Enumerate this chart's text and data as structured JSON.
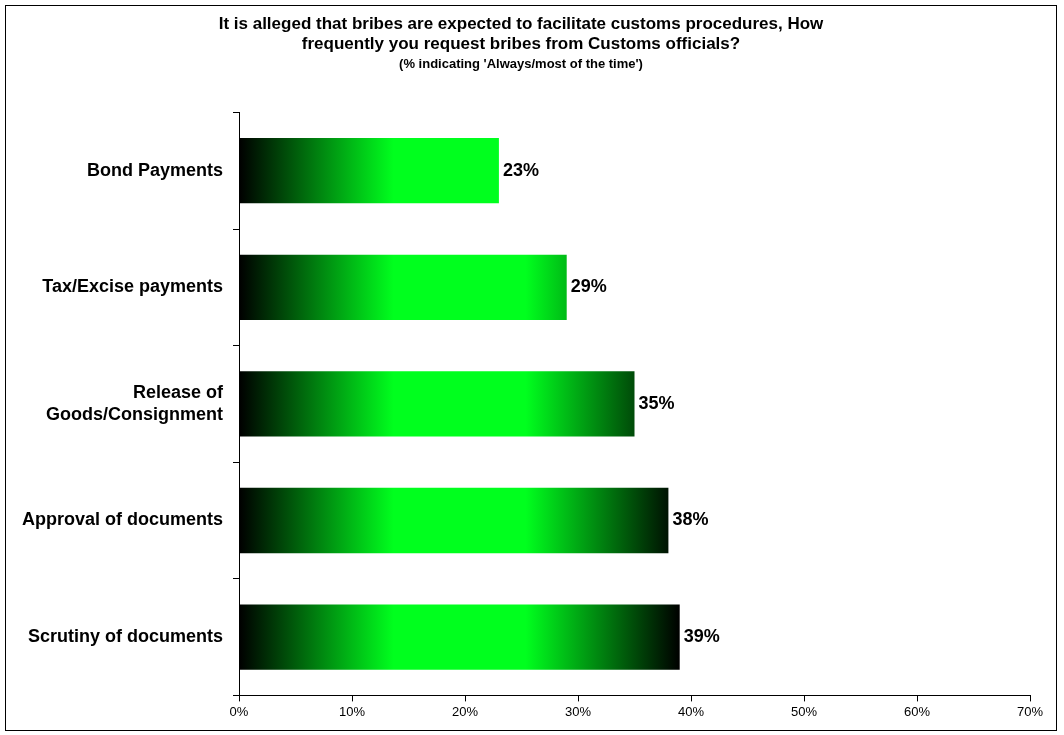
{
  "chart_data": {
    "type": "bar",
    "orientation": "horizontal",
    "title": "It is alleged that bribes are expected to facilitate customs procedures, How frequently you request bribes from Customs officials?",
    "subtitle": "(% indicating 'Always/most of the time')",
    "categories": [
      "Bond Payments",
      "Tax/Excise payments",
      "Release of Goods/Consignment",
      "Approval of documents",
      "Scrutiny of documents"
    ],
    "values": [
      23,
      29,
      35,
      38,
      39
    ],
    "value_labels": [
      "23%",
      "29%",
      "35%",
      "38%",
      "39%"
    ],
    "color": "#00ff1e",
    "xlim": [
      0,
      70
    ],
    "xticks": [
      {
        "value": 0,
        "label": "0%"
      },
      {
        "value": 10,
        "label": "10%"
      },
      {
        "value": 20,
        "label": "20%"
      },
      {
        "value": 30,
        "label": "30%"
      },
      {
        "value": 40,
        "label": "40%"
      },
      {
        "value": 50,
        "label": "50%"
      },
      {
        "value": 60,
        "label": "60%"
      },
      {
        "value": 70,
        "label": "70%"
      }
    ],
    "grid": false,
    "legend": false
  }
}
